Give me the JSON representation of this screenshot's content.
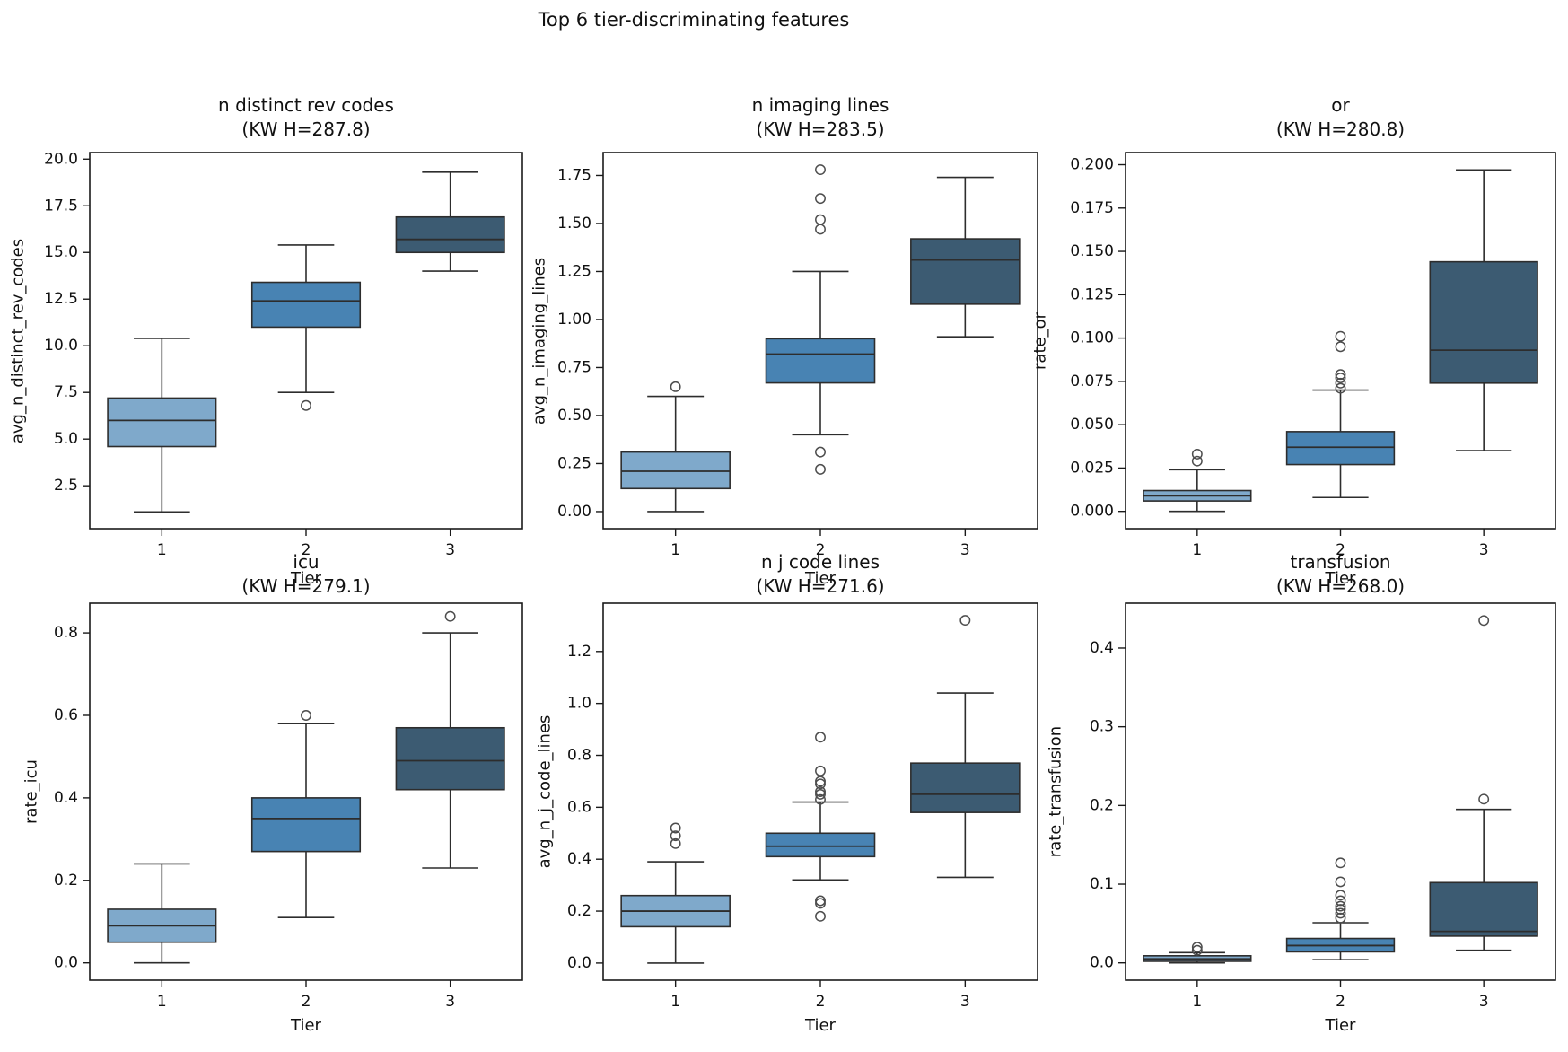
{
  "figure": {
    "title": "Top 6 tier-discriminating features"
  },
  "palette": {
    "tier1_fill": "#7fa9cb",
    "tier2_fill": "#4883b3",
    "tier3_fill": "#3c5b72",
    "box_edge": "#2d2d2d",
    "flier_edge": "#4d4d4d",
    "axis_color": "#1a1a1a",
    "text_color": "#111111",
    "background": "#ffffff"
  },
  "chart_data": [
    {
      "type": "box",
      "title": "n distinct rev codes",
      "subtitle": "(KW H=287.8)",
      "kw_h": 287.8,
      "xlabel": "Tier",
      "ylabel": "avg_n_distinct_rev_codes",
      "categories": [
        "1",
        "2",
        "3"
      ],
      "ytick_labels": [
        "2.5",
        "5.0",
        "7.5",
        "10.0",
        "12.5",
        "15.0",
        "17.5",
        "20.0"
      ],
      "ylim": [
        0.2,
        20.35
      ],
      "grid": false,
      "boxes": [
        {
          "category": "1",
          "whislo": 1.1,
          "q1": 4.6,
          "med": 6.0,
          "q3": 7.2,
          "whishi": 10.4,
          "fliers": []
        },
        {
          "category": "2",
          "whislo": 7.5,
          "q1": 11.0,
          "med": 12.4,
          "q3": 13.4,
          "whishi": 15.4,
          "fliers": [
            6.8
          ]
        },
        {
          "category": "3",
          "whislo": 14.0,
          "q1": 15.0,
          "med": 15.7,
          "q3": 16.9,
          "whishi": 19.3,
          "fliers": []
        }
      ]
    },
    {
      "type": "box",
      "title": "n imaging lines",
      "subtitle": "(KW H=283.5)",
      "kw_h": 283.5,
      "xlabel": "Tier",
      "ylabel": "avg_n_imaging_lines",
      "categories": [
        "1",
        "2",
        "3"
      ],
      "ytick_labels": [
        "0.00",
        "0.25",
        "0.50",
        "0.75",
        "1.00",
        "1.25",
        "1.50",
        "1.75"
      ],
      "ylim": [
        -0.089,
        1.869
      ],
      "grid": false,
      "boxes": [
        {
          "category": "1",
          "whislo": 0.0,
          "q1": 0.12,
          "med": 0.21,
          "q3": 0.31,
          "whishi": 0.6,
          "fliers": [
            0.65
          ]
        },
        {
          "category": "2",
          "whislo": 0.4,
          "q1": 0.67,
          "med": 0.82,
          "q3": 0.9,
          "whishi": 1.25,
          "fliers": [
            1.78,
            1.63,
            1.52,
            1.47,
            0.31,
            0.22
          ]
        },
        {
          "category": "3",
          "whislo": 0.91,
          "q1": 1.08,
          "med": 1.31,
          "q3": 1.42,
          "whishi": 1.74,
          "fliers": []
        }
      ]
    },
    {
      "type": "box",
      "title": "or",
      "subtitle": "(KW H=280.8)",
      "kw_h": 280.8,
      "xlabel": "Tier",
      "ylabel": "rate_or",
      "categories": [
        "1",
        "2",
        "3"
      ],
      "ytick_labels": [
        "0.000",
        "0.025",
        "0.050",
        "0.075",
        "0.100",
        "0.125",
        "0.150",
        "0.175",
        "0.200"
      ],
      "ylim": [
        -0.01,
        0.207
      ],
      "grid": false,
      "boxes": [
        {
          "category": "1",
          "whislo": 0.0,
          "q1": 0.006,
          "med": 0.009,
          "q3": 0.012,
          "whishi": 0.024,
          "fliers": [
            0.029,
            0.033
          ]
        },
        {
          "category": "2",
          "whislo": 0.008,
          "q1": 0.027,
          "med": 0.037,
          "q3": 0.046,
          "whishi": 0.07,
          "fliers": [
            0.071,
            0.074,
            0.077,
            0.079,
            0.095,
            0.101
          ]
        },
        {
          "category": "3",
          "whislo": 0.035,
          "q1": 0.074,
          "med": 0.093,
          "q3": 0.144,
          "whishi": 0.197,
          "fliers": []
        }
      ]
    },
    {
      "type": "box",
      "title": "icu",
      "subtitle": "(KW H=279.1)",
      "kw_h": 279.1,
      "xlabel": "Tier",
      "ylabel": "rate_icu",
      "categories": [
        "1",
        "2",
        "3"
      ],
      "ytick_labels": [
        "0.0",
        "0.2",
        "0.4",
        "0.6",
        "0.8"
      ],
      "ylim": [
        -0.042,
        0.872
      ],
      "grid": false,
      "boxes": [
        {
          "category": "1",
          "whislo": 0.0,
          "q1": 0.05,
          "med": 0.09,
          "q3": 0.13,
          "whishi": 0.24,
          "fliers": []
        },
        {
          "category": "2",
          "whislo": 0.11,
          "q1": 0.27,
          "med": 0.35,
          "q3": 0.4,
          "whishi": 0.58,
          "fliers": [
            0.6
          ]
        },
        {
          "category": "3",
          "whislo": 0.23,
          "q1": 0.42,
          "med": 0.49,
          "q3": 0.57,
          "whishi": 0.8,
          "fliers": [
            0.84
          ]
        }
      ]
    },
    {
      "type": "box",
      "title": "n j code lines",
      "subtitle": "(KW H=271.6)",
      "kw_h": 271.6,
      "xlabel": "Tier",
      "ylabel": "avg_n_j_code_lines",
      "categories": [
        "1",
        "2",
        "3"
      ],
      "ytick_labels": [
        "0.0",
        "0.2",
        "0.4",
        "0.6",
        "0.8",
        "1.0",
        "1.2"
      ],
      "ylim": [
        -0.066,
        1.386
      ],
      "grid": false,
      "boxes": [
        {
          "category": "1",
          "whislo": 0.0,
          "q1": 0.14,
          "med": 0.2,
          "q3": 0.26,
          "whishi": 0.39,
          "fliers": [
            0.46,
            0.49,
            0.52
          ]
        },
        {
          "category": "2",
          "whislo": 0.32,
          "q1": 0.41,
          "med": 0.45,
          "q3": 0.5,
          "whishi": 0.62,
          "fliers": [
            0.18,
            0.23,
            0.24,
            0.63,
            0.65,
            0.66,
            0.69,
            0.7,
            0.74,
            0.87
          ]
        },
        {
          "category": "3",
          "whislo": 0.33,
          "q1": 0.58,
          "med": 0.65,
          "q3": 0.77,
          "whishi": 1.04,
          "fliers": [
            1.32
          ]
        }
      ]
    },
    {
      "type": "box",
      "title": "transfusion",
      "subtitle": "(KW H=268.0)",
      "kw_h": 268.0,
      "xlabel": "Tier",
      "ylabel": "rate_transfusion",
      "categories": [
        "1",
        "2",
        "3"
      ],
      "ytick_labels": [
        "0.0",
        "0.1",
        "0.2",
        "0.3",
        "0.4"
      ],
      "ylim": [
        -0.022,
        0.457
      ],
      "grid": false,
      "boxes": [
        {
          "category": "1",
          "whislo": 0.0,
          "q1": 0.002,
          "med": 0.005,
          "q3": 0.009,
          "whishi": 0.013,
          "fliers": [
            0.016,
            0.02
          ]
        },
        {
          "category": "2",
          "whislo": 0.004,
          "q1": 0.014,
          "med": 0.022,
          "q3": 0.031,
          "whishi": 0.051,
          "fliers": [
            0.057,
            0.063,
            0.068,
            0.072,
            0.079,
            0.086,
            0.103,
            0.127
          ]
        },
        {
          "category": "3",
          "whislo": 0.016,
          "q1": 0.034,
          "med": 0.04,
          "q3": 0.102,
          "whishi": 0.195,
          "fliers": [
            0.208,
            0.435
          ]
        }
      ]
    }
  ]
}
